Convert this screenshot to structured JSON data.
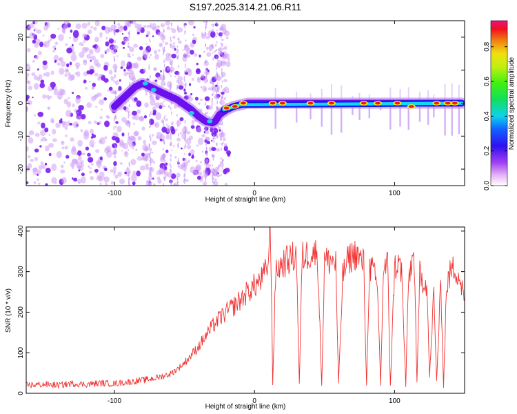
{
  "title": "S197.2025.314.21.06.R11",
  "colors": {
    "snr_line": "#f03030",
    "spectral_core": "#e81010",
    "spectral_mid": "#10e0f0",
    "spectral_edge": "#1010f0",
    "scatter": "#8a30f0"
  },
  "chart_data": [
    {
      "type": "heatmap",
      "title": "S197.2025.314.21.06.R11",
      "xlabel": "Height of straight line (km)",
      "ylabel": "Frequency (Hz)",
      "xlim": [
        -163,
        150
      ],
      "ylim": [
        -25,
        25
      ],
      "xticks": [
        -100,
        0,
        100
      ],
      "xtick_labels": [
        "-100",
        "0",
        "100"
      ],
      "yticks": [
        -20,
        -10,
        0,
        10,
        20
      ],
      "ytick_labels": [
        "-20",
        "-10",
        "0",
        "10",
        "20"
      ],
      "colorbar": {
        "label": "Normalized spectral amplitude",
        "range": [
          0,
          0.95
        ],
        "ticks": [
          0.0,
          0.2,
          0.4,
          0.6,
          0.8
        ],
        "tick_labels": [
          "0.0",
          "0.2",
          "0.4",
          "0.6",
          "0.8"
        ],
        "colormap": "rainbow"
      },
      "ridge": {
        "x": [
          -100,
          -95,
          -90,
          -85,
          -80,
          -75,
          -70,
          -65,
          -60,
          -55,
          -50,
          -45,
          -40,
          -35,
          -30,
          -28,
          -25,
          -20,
          -15,
          -10,
          -5,
          0,
          10,
          20,
          40,
          60,
          80,
          100,
          120,
          140,
          148
        ],
        "y": [
          -1,
          1,
          3,
          5,
          6,
          5,
          4,
          3,
          2,
          1,
          -0.5,
          -2,
          -4,
          -5.5,
          -6,
          -5.5,
          -3.5,
          -2,
          -1,
          -0.5,
          0,
          0,
          0,
          0,
          0,
          0,
          0,
          0,
          0,
          0,
          0
        ]
      },
      "peak_points": {
        "x": [
          -20,
          -14,
          -8,
          13,
          20,
          40,
          55,
          78,
          88,
          102,
          112,
          130,
          138,
          143
        ],
        "y": [
          -1.5,
          -1,
          0,
          0,
          0,
          0,
          0,
          0,
          0,
          0,
          -1,
          0,
          0,
          0
        ],
        "amplitude": [
          0.85,
          0.8,
          0.75,
          0.9,
          0.92,
          0.9,
          0.85,
          0.9,
          0.8,
          0.85,
          0.8,
          0.82,
          0.88,
          0.85
        ]
      }
    },
    {
      "type": "line",
      "xlabel": "Height of straight line (km)",
      "ylabel": "SNR (10 * v/v)",
      "xlim": [
        -163,
        150
      ],
      "ylim": [
        0,
        410
      ],
      "xticks": [
        -100,
        0,
        100
      ],
      "xtick_labels": [
        "-100",
        "0",
        "100"
      ],
      "yticks": [
        0,
        100,
        200,
        300,
        400
      ],
      "ytick_labels": [
        "0",
        "100",
        "200",
        "300",
        "400"
      ],
      "series": [
        {
          "name": "SNR",
          "x": [
            -163,
            -150,
            -140,
            -130,
            -120,
            -110,
            -100,
            -90,
            -80,
            -70,
            -60,
            -55,
            -50,
            -45,
            -40,
            -35,
            -30,
            -25,
            -20,
            -15,
            -10,
            -5,
            0,
            5,
            8,
            10,
            11,
            12,
            13,
            15,
            17,
            20,
            25,
            30,
            32,
            34,
            36,
            40,
            45,
            48,
            50,
            52,
            55,
            58,
            60,
            63,
            65,
            67,
            70,
            73,
            75,
            78,
            80,
            82,
            85,
            88,
            90,
            92,
            95,
            97,
            100,
            103,
            105,
            108,
            110,
            112,
            114,
            116,
            118,
            120,
            123,
            125,
            128,
            130,
            133,
            135,
            137,
            140,
            143,
            146,
            150
          ],
          "y": [
            20,
            22,
            20,
            24,
            22,
            25,
            24,
            28,
            32,
            38,
            48,
            60,
            75,
            95,
            115,
            140,
            165,
            185,
            200,
            215,
            230,
            250,
            265,
            280,
            300,
            330,
            400,
            300,
            20,
            290,
            310,
            320,
            330,
            340,
            20,
            335,
            340,
            345,
            345,
            20,
            330,
            325,
            330,
            320,
            20,
            290,
            310,
            330,
            340,
            345,
            330,
            320,
            20,
            310,
            300,
            250,
            20,
            300,
            320,
            20,
            310,
            320,
            300,
            20,
            280,
            320,
            340,
            20,
            300,
            280,
            270,
            40,
            250,
            30,
            270,
            20,
            260,
            300,
            310,
            290,
            230
          ]
        }
      ]
    }
  ]
}
